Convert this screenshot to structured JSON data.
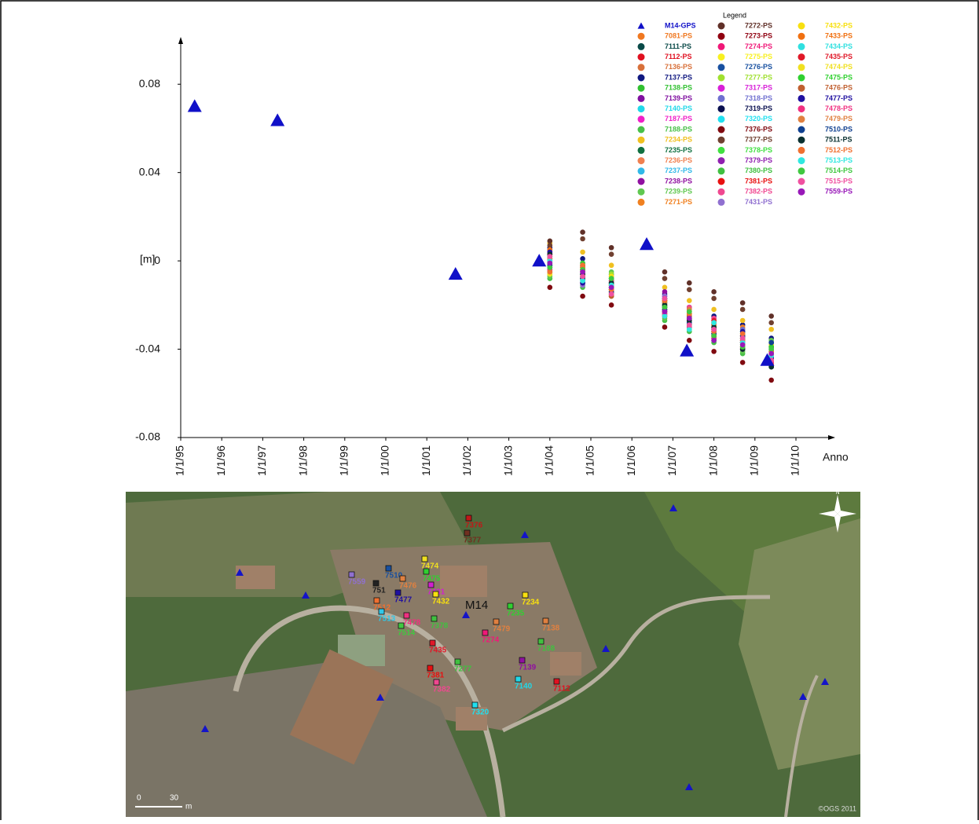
{
  "chart_data": {
    "type": "scatter",
    "legend_title": "Legend",
    "ylabel": "[m]",
    "xlabel": "Anno",
    "xlim": [
      1995,
      2010.9
    ],
    "ylim": [
      -0.08,
      0.1
    ],
    "xticks": [
      {
        "value": 1995,
        "label": "1/1/95"
      },
      {
        "value": 1996,
        "label": "1/1/96"
      },
      {
        "value": 1997,
        "label": "1/1/97"
      },
      {
        "value": 1998,
        "label": "1/1/98"
      },
      {
        "value": 1999,
        "label": "1/1/99"
      },
      {
        "value": 2000,
        "label": "1/1/00"
      },
      {
        "value": 2001,
        "label": "1/1/01"
      },
      {
        "value": 2002,
        "label": "1/1/02"
      },
      {
        "value": 2003,
        "label": "1/1/03"
      },
      {
        "value": 2004,
        "label": "1/1/04"
      },
      {
        "value": 2005,
        "label": "1/1/05"
      },
      {
        "value": 2006,
        "label": "1/1/06"
      },
      {
        "value": 2007,
        "label": "1/1/07"
      },
      {
        "value": 2008,
        "label": "1/1/08"
      },
      {
        "value": 2009,
        "label": "1/1/09"
      },
      {
        "value": 2010,
        "label": "1/1/10"
      }
    ],
    "yticks": [
      -0.08,
      -0.04,
      0,
      0.04,
      0.08
    ],
    "x": [
      2004.0,
      2004.8,
      2005.5,
      2006.8,
      2007.4,
      2008.0,
      2008.7,
      2009.4
    ],
    "gps": {
      "name": "M14-GPS",
      "color": "#1010c8",
      "x": [
        1995.34,
        1997.36,
        2001.7,
        2003.74,
        2006.36,
        2007.34,
        2009.3
      ],
      "values": [
        0.07,
        0.0636,
        -0.006,
        0.0,
        0.0075,
        -0.0407,
        -0.045
      ]
    },
    "series": [
      {
        "name": "7081-PS",
        "color": "#f07820",
        "values": [
          0.004,
          -0.002,
          -0.008,
          -0.018,
          -0.024,
          -0.028,
          -0.031,
          -0.038
        ]
      },
      {
        "name": "7111-PS",
        "color": "#0a4a48",
        "values": [
          -0.003,
          -0.008,
          -0.012,
          -0.022,
          -0.029,
          -0.033,
          -0.037,
          -0.044
        ]
      },
      {
        "name": "7112-PS",
        "color": "#e01020",
        "values": [
          0.001,
          -0.004,
          -0.011,
          -0.019,
          -0.027,
          -0.031,
          -0.034,
          -0.041
        ]
      },
      {
        "name": "7136-PS",
        "color": "#d8703a",
        "values": [
          -0.006,
          -0.01,
          -0.015,
          -0.025,
          -0.03,
          -0.036,
          -0.04,
          -0.046
        ]
      },
      {
        "name": "7137-PS",
        "color": "#101880",
        "values": [
          0.006,
          0.001,
          -0.006,
          -0.015,
          -0.021,
          -0.025,
          -0.029,
          -0.035
        ]
      },
      {
        "name": "7138-PS",
        "color": "#30c030",
        "values": [
          -0.001,
          -0.006,
          -0.009,
          -0.021,
          -0.025,
          -0.029,
          -0.036,
          -0.039
        ]
      },
      {
        "name": "7139-PS",
        "color": "#8010a0",
        "values": [
          0.002,
          -0.003,
          -0.013,
          -0.017,
          -0.028,
          -0.032,
          -0.033,
          -0.042
        ]
      },
      {
        "name": "7140-PS",
        "color": "#20d8e8",
        "values": [
          -0.004,
          -0.007,
          -0.01,
          -0.023,
          -0.023,
          -0.034,
          -0.038,
          -0.037
        ]
      },
      {
        "name": "7187-PS",
        "color": "#f020c8",
        "values": [
          0.003,
          -0.001,
          -0.007,
          -0.016,
          -0.026,
          -0.027,
          -0.035,
          -0.043
        ]
      },
      {
        "name": "7188-PS",
        "color": "#48c048",
        "values": [
          -0.008,
          -0.012,
          -0.016,
          -0.027,
          -0.032,
          -0.037,
          -0.042,
          -0.048
        ]
      },
      {
        "name": "7234-PS",
        "color": "#f0c020",
        "values": [
          0.008,
          0.004,
          -0.002,
          -0.012,
          -0.018,
          -0.022,
          -0.027,
          -0.031
        ]
      },
      {
        "name": "7235-PS",
        "color": "#107040",
        "values": [
          -0.002,
          -0.005,
          -0.01,
          -0.02,
          -0.026,
          -0.03,
          -0.035,
          -0.04
        ]
      },
      {
        "name": "7236-PS",
        "color": "#f08050",
        "values": [
          0.0,
          -0.009,
          -0.014,
          -0.019,
          -0.031,
          -0.029,
          -0.039,
          -0.045
        ]
      },
      {
        "name": "7237-PS",
        "color": "#30b8e8",
        "values": [
          -0.005,
          -0.003,
          -0.008,
          -0.024,
          -0.022,
          -0.033,
          -0.032,
          -0.038
        ]
      },
      {
        "name": "7238-PS",
        "color": "#9010a0",
        "values": [
          0.005,
          -0.006,
          -0.012,
          -0.014,
          -0.027,
          -0.026,
          -0.036,
          -0.047
        ]
      },
      {
        "name": "7239-PS",
        "color": "#60c850",
        "values": [
          -0.007,
          -0.011,
          -0.005,
          -0.026,
          -0.024,
          -0.035,
          -0.041,
          -0.036
        ]
      },
      {
        "name": "7271-PS",
        "color": "#f08020",
        "values": [
          0.002,
          -0.004,
          -0.016,
          -0.018,
          -0.029,
          -0.031,
          -0.03,
          -0.044
        ]
      },
      {
        "name": "7272-PS",
        "color": "#603028",
        "values": [
          0.009,
          0.013,
          0.006,
          -0.005,
          -0.01,
          -0.014,
          -0.019,
          -0.025
        ]
      },
      {
        "name": "7273-PS",
        "color": "#900010",
        "values": [
          -0.001,
          -0.008,
          -0.013,
          -0.021,
          -0.028,
          -0.034,
          -0.037,
          -0.043
        ]
      },
      {
        "name": "7274-PS",
        "color": "#f01878",
        "values": [
          0.003,
          -0.002,
          -0.009,
          -0.023,
          -0.025,
          -0.03,
          -0.034,
          -0.04
        ]
      },
      {
        "name": "7275-PS",
        "color": "#f8f020",
        "values": [
          -0.004,
          -0.007,
          -0.011,
          -0.017,
          -0.03,
          -0.028,
          -0.038,
          -0.046
        ]
      },
      {
        "name": "7276-PS",
        "color": "#1850a0",
        "values": [
          0.001,
          -0.01,
          -0.015,
          -0.02,
          -0.023,
          -0.036,
          -0.04,
          -0.039
        ]
      },
      {
        "name": "7277-PS",
        "color": "#a0e030",
        "values": [
          -0.006,
          -0.004,
          -0.006,
          -0.024,
          -0.027,
          -0.027,
          -0.033,
          -0.042
        ]
      },
      {
        "name": "7317-PS",
        "color": "#d820d8",
        "values": [
          0.004,
          -0.005,
          -0.012,
          -0.016,
          -0.022,
          -0.032,
          -0.036,
          -0.045
        ]
      },
      {
        "name": "7318-PS",
        "color": "#7070d0",
        "values": [
          -0.002,
          -0.009,
          -0.01,
          -0.025,
          -0.028,
          -0.029,
          -0.031,
          -0.037
        ]
      },
      {
        "name": "7319-PS",
        "color": "#0a1050",
        "values": [
          0.0,
          -0.003,
          -0.014,
          -0.018,
          -0.026,
          -0.035,
          -0.039,
          -0.048
        ]
      },
      {
        "name": "7320-PS",
        "color": "#20e0f0",
        "values": [
          -0.003,
          -0.006,
          -0.008,
          -0.022,
          -0.031,
          -0.031,
          -0.037,
          -0.041
        ]
      },
      {
        "name": "7376-PS",
        "color": "#800a10",
        "values": [
          -0.012,
          -0.016,
          -0.02,
          -0.03,
          -0.036,
          -0.041,
          -0.046,
          -0.054
        ]
      },
      {
        "name": "7377-PS",
        "color": "#704030",
        "values": [
          0.007,
          0.01,
          0.003,
          -0.008,
          -0.013,
          -0.017,
          -0.022,
          -0.028
        ]
      },
      {
        "name": "7378-PS",
        "color": "#40e040",
        "values": [
          -0.001,
          -0.004,
          -0.011,
          -0.019,
          -0.024,
          -0.033,
          -0.034,
          -0.043
        ]
      },
      {
        "name": "7379-PS",
        "color": "#9020b0",
        "values": [
          0.002,
          -0.007,
          -0.013,
          -0.021,
          -0.027,
          -0.028,
          -0.039,
          -0.04
        ]
      },
      {
        "name": "7380-PS",
        "color": "#40c040",
        "values": [
          -0.005,
          -0.002,
          -0.009,
          -0.017,
          -0.025,
          -0.03,
          -0.032,
          -0.046
        ]
      },
      {
        "name": "7381-PS",
        "color": "#e81010",
        "values": [
          0.003,
          -0.008,
          -0.01,
          -0.023,
          -0.029,
          -0.034,
          -0.035,
          -0.039
        ]
      },
      {
        "name": "7382-PS",
        "color": "#f04890",
        "values": [
          -0.004,
          -0.005,
          -0.015,
          -0.024,
          -0.021,
          -0.026,
          -0.04,
          -0.044
        ]
      },
      {
        "name": "7431-PS",
        "color": "#9070d0",
        "values": [
          0.001,
          -0.011,
          -0.012,
          -0.016,
          -0.03,
          -0.031,
          -0.037,
          -0.042
        ]
      },
      {
        "name": "7432-PS",
        "color": "#f8e010",
        "values": [
          -0.002,
          -0.003,
          -0.007,
          -0.02,
          -0.026,
          -0.029,
          -0.033,
          -0.038
        ]
      },
      {
        "name": "7433-PS",
        "color": "#f07010",
        "values": [
          0.005,
          -0.006,
          -0.014,
          -0.022,
          -0.024,
          -0.033,
          -0.036,
          -0.047
        ]
      },
      {
        "name": "7434-PS",
        "color": "#30e0e0",
        "values": [
          -0.003,
          -0.009,
          -0.01,
          -0.019,
          -0.028,
          -0.032,
          -0.038,
          -0.04
        ]
      },
      {
        "name": "7435-PS",
        "color": "#e01828",
        "values": [
          0.0,
          -0.004,
          -0.011,
          -0.025,
          -0.027,
          -0.027,
          -0.034,
          -0.043
        ]
      },
      {
        "name": "7474-PS",
        "color": "#f0e020",
        "values": [
          -0.006,
          -0.008,
          -0.013,
          -0.018,
          -0.023,
          -0.03,
          -0.039,
          -0.045
        ]
      },
      {
        "name": "7475-PS",
        "color": "#30d030",
        "values": [
          0.002,
          -0.001,
          -0.008,
          -0.021,
          -0.029,
          -0.034,
          -0.035,
          -0.039
        ]
      },
      {
        "name": "7476-PS",
        "color": "#c06030",
        "values": [
          -0.001,
          -0.007,
          -0.016,
          -0.023,
          -0.025,
          -0.028,
          -0.037,
          -0.041
        ]
      },
      {
        "name": "7477-PS",
        "color": "#2010a0",
        "values": [
          0.004,
          -0.01,
          -0.012,
          -0.017,
          -0.026,
          -0.031,
          -0.032,
          -0.044
        ]
      },
      {
        "name": "7478-PS",
        "color": "#f03080",
        "values": [
          -0.004,
          -0.005,
          -0.009,
          -0.024,
          -0.03,
          -0.035,
          -0.038,
          -0.046
        ]
      },
      {
        "name": "7479-PS",
        "color": "#e08040",
        "values": [
          0.001,
          -0.003,
          -0.012,
          -0.019,
          -0.022,
          -0.029,
          -0.036,
          -0.042
        ]
      },
      {
        "name": "7510-PS",
        "color": "#104090",
        "values": [
          -0.002,
          -0.008,
          -0.014,
          -0.022,
          -0.028,
          -0.033,
          -0.034,
          -0.037
        ]
      },
      {
        "name": "7511-PS",
        "color": "#0a3030",
        "values": [
          0.003,
          -0.006,
          -0.01,
          -0.02,
          -0.027,
          -0.03,
          -0.04,
          -0.048
        ]
      },
      {
        "name": "7512-PS",
        "color": "#f07030",
        "values": [
          -0.005,
          -0.002,
          -0.013,
          -0.018,
          -0.024,
          -0.032,
          -0.033,
          -0.041
        ]
      },
      {
        "name": "7513-PS",
        "color": "#30e8e0",
        "values": [
          0.0,
          -0.009,
          -0.011,
          -0.025,
          -0.031,
          -0.028,
          -0.037,
          -0.043
        ]
      },
      {
        "name": "7514-PS",
        "color": "#40c840",
        "values": [
          -0.003,
          -0.004,
          -0.008,
          -0.021,
          -0.023,
          -0.034,
          -0.039,
          -0.04
        ]
      },
      {
        "name": "7515-PS",
        "color": "#f050a0",
        "values": [
          0.002,
          -0.007,
          -0.015,
          -0.017,
          -0.029,
          -0.031,
          -0.035,
          -0.045
        ]
      },
      {
        "name": "7559-PS",
        "color": "#9818b8",
        "values": [
          -0.001,
          -0.005,
          -0.012,
          -0.023,
          -0.026,
          -0.036,
          -0.038,
          -0.042
        ]
      }
    ]
  },
  "map": {
    "labels": [
      "7376",
      "7377",
      "7474",
      "7510",
      "7559",
      "751",
      "7475",
      "7476",
      "7431",
      "7477",
      "7432",
      "7234",
      "7512",
      "7235",
      "7513",
      "7478",
      "7378",
      "7514",
      "7479",
      "7138",
      "7274",
      "7188",
      "7435",
      "7381",
      "7382",
      "7140",
      "7112",
      "7320",
      "7139",
      "7277"
    ],
    "site": "M14",
    "north": "N",
    "scale": [
      "0",
      "30",
      "m"
    ],
    "credit": "©OGS 2011"
  }
}
